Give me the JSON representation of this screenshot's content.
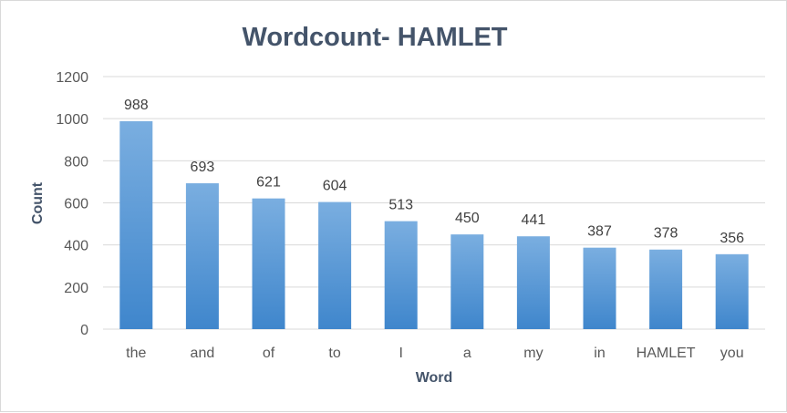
{
  "chart_data": {
    "type": "bar",
    "title": "Wordcount- HAMLET",
    "xlabel": "Word",
    "ylabel": "Count",
    "categories": [
      "the",
      "and",
      "of",
      "to",
      "I",
      "a",
      "my",
      "in",
      "HAMLET",
      "you"
    ],
    "values": [
      988,
      693,
      621,
      604,
      513,
      450,
      441,
      387,
      378,
      356
    ],
    "ylim": [
      0,
      1200
    ],
    "yticks": [
      0,
      200,
      400,
      600,
      800,
      1000,
      1200
    ],
    "grid": true,
    "data_labels": true,
    "legend": "none",
    "colors": {
      "bar_top": "#7aaee0",
      "bar_bottom": "#3f86cc",
      "title": "#44546a"
    }
  }
}
